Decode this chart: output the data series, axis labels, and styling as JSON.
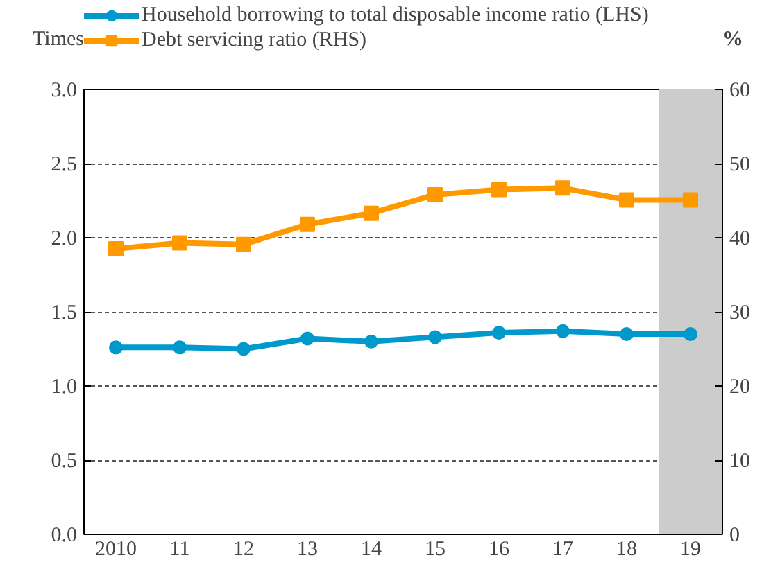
{
  "chart_data": {
    "type": "line",
    "ylabel": "Times",
    "y2label": "%",
    "x": [
      2010,
      2011,
      2012,
      2013,
      2014,
      2015,
      2016,
      2017,
      2018,
      2019
    ],
    "xlim": [
      2009.5,
      2019.5
    ],
    "xticks": [
      2010,
      {
        "value": 2011,
        "label": "11"
      },
      {
        "value": 2012,
        "label": "12"
      },
      {
        "value": 2013,
        "label": "13"
      },
      {
        "value": 2014,
        "label": "14"
      },
      {
        "value": 2015,
        "label": "15"
      },
      {
        "value": 2016,
        "label": "16"
      },
      {
        "value": 2017,
        "label": "17"
      },
      {
        "value": 2018,
        "label": "18"
      },
      {
        "value": 2019,
        "label": "19"
      }
    ],
    "ylim": [
      0,
      3
    ],
    "yticks": [
      {
        "value": 0,
        "label": "0.0"
      },
      {
        "value": 0.5,
        "label": "0.5"
      },
      {
        "value": 1,
        "label": "1.0"
      },
      {
        "value": 1.5,
        "label": "1.5"
      },
      {
        "value": 2,
        "label": "2.0"
      },
      {
        "value": 2.5,
        "label": "2.5"
      },
      {
        "value": 3,
        "label": "3.0"
      }
    ],
    "y2lim": [
      0,
      60
    ],
    "y2ticks": [
      0,
      10,
      20,
      30,
      40,
      50,
      60
    ],
    "series": [
      {
        "name": "Household borrowing to total disposable income ratio (LHS)",
        "color": "#0099cc",
        "marker": "circle",
        "values": [
          1.26,
          1.26,
          1.25,
          1.32,
          1.3,
          1.33,
          1.36,
          1.37,
          1.35,
          1.35
        ]
      },
      {
        "name": "Debt servicing ratio (RHS)",
        "color": "#ff9900",
        "marker": "square",
        "axis": "y2",
        "values": [
          38.5,
          39.3,
          39.1,
          41.8,
          43.3,
          45.8,
          46.5,
          46.7,
          45.1,
          45.1
        ]
      }
    ],
    "bands": [
      {
        "axis": "x",
        "from": 2018.5,
        "to": 2019.5,
        "color": "#cccccc"
      }
    ],
    "grid": "y",
    "legend": "top left",
    "line_style": "solid"
  }
}
